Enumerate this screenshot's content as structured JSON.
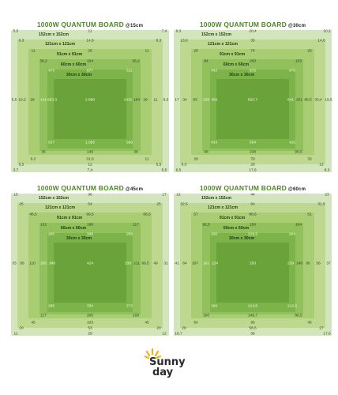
{
  "labels": {
    "area_152": "152cm x 152cm",
    "area_121": "121cm x 121cm",
    "area_91": "91cm x 91cm",
    "area_60": "60cm x 60cm",
    "area_30": "30cm x 30cm"
  },
  "logo": {
    "line1": "Sunny",
    "line2": "day"
  },
  "colors": {
    "title": "#4a8a1e",
    "ring1": "#d3e5bd",
    "ring2": "#bed98f",
    "ring3": "#a9cd72",
    "ring4": "#92c05c",
    "ring5": "#7db449",
    "ring6": "#6aa339",
    "logo_sun": "#f0b21b"
  },
  "panels": [
    {
      "title": "1000W QUANTUM BOARD",
      "distance": "@15cm",
      "top": [
        "5,5",
        "11",
        "7,4"
      ],
      "ring2": [
        "8,3",
        "14,8",
        "8,3"
      ],
      "ring3": [
        "11",
        "26",
        "11"
      ],
      "ring4": [
        "38,2",
        "104",
        "36,2"
      ],
      "ring5": [
        "473",
        "677",
        "511"
      ],
      "left": [
        "5,5",
        "10,2",
        "28",
        "141",
        "953,3"
      ],
      "center": "2.660",
      "right": [
        "1431",
        "184",
        "28",
        "11",
        "8,3"
      ],
      "b5": [
        "537",
        "1.065",
        "568"
      ],
      "b4": [
        "36",
        "149",
        "38"
      ],
      "b3": [
        "9,2",
        "31,6",
        "11"
      ],
      "b2": [
        "5,5",
        "12",
        "5,5"
      ],
      "bottom": [
        "3,7",
        "7,4",
        "5,5"
      ]
    },
    {
      "title": "1000W QUANTUM BOARD",
      "distance": "@30cm",
      "top": [
        "9,3",
        "20,4",
        "10,2"
      ],
      "ring2": [
        "13,9",
        "35",
        "14,8"
      ],
      "ring3": [
        "28",
        "74",
        "29"
      ],
      "ring4": [
        "84",
        "200",
        "103"
      ],
      "ring5": [
        "442",
        "575",
        "476"
      ],
      "left": [
        "17",
        "34",
        "83",
        "238",
        "601"
      ],
      "center": "820,7",
      "right": [
        "641",
        "251",
        "85,5",
        "33,4",
        "19,5"
      ],
      "b5": [
        "434",
        "554",
        "425"
      ],
      "b4": [
        "98",
        "238",
        "98,5"
      ],
      "b3": [
        "28",
        "79",
        "33"
      ],
      "b2": [
        "9,3",
        "28",
        "12"
      ],
      "bottom": [
        "6,5",
        "17,6",
        "8,3"
      ]
    },
    {
      "title": "1000W QUANTUM BOARD",
      "distance": "@45cm",
      "top": [
        "15",
        "36",
        "17"
      ],
      "ring2": [
        "25",
        "54",
        "25"
      ],
      "ring3": [
        "46,5",
        "99,5",
        "66,5"
      ],
      "ring4": [
        "122",
        "198",
        "117"
      ],
      "ring5": [
        "290",
        "346",
        "289"
      ],
      "left": [
        "33",
        "58",
        "110",
        "205",
        "348"
      ],
      "center": "424",
      "right": [
        "339",
        "211",
        "99,5",
        "49",
        "31"
      ],
      "b5": [
        "286",
        "334",
        "272"
      ],
      "b4": [
        "117",
        "200",
        "109"
      ],
      "b3": [
        "45",
        "103",
        "45"
      ],
      "b2": [
        "20",
        "53",
        "20"
      ],
      "bottom": [
        "11",
        "29",
        "12"
      ]
    },
    {
      "title": "1000W QUANTUM BOARD",
      "distance": "@60cm",
      "top": [
        "21",
        "44",
        "23"
      ],
      "ring2": [
        "32,5",
        "64",
        "31,5"
      ],
      "ring3": [
        "57",
        "88,6",
        "51"
      ],
      "ring4": [
        "92,5",
        "150",
        "104"
      ],
      "ring5": [
        "200",
        "219,5",
        "204"
      ],
      "left": [
        "41",
        "64",
        "107",
        "161",
        "224"
      ],
      "center": "250",
      "right": [
        "239",
        "148",
        "90",
        "56",
        "37"
      ],
      "b5": [
        "199",
        "214,8",
        "212,5"
      ],
      "b4": [
        "100",
        "149,7",
        "86,5"
      ],
      "b3": [
        "54",
        "95",
        "45"
      ],
      "b2": [
        "29",
        "58,6",
        "27"
      ],
      "bottom": [
        "16,7",
        "36",
        "17,6"
      ]
    }
  ]
}
